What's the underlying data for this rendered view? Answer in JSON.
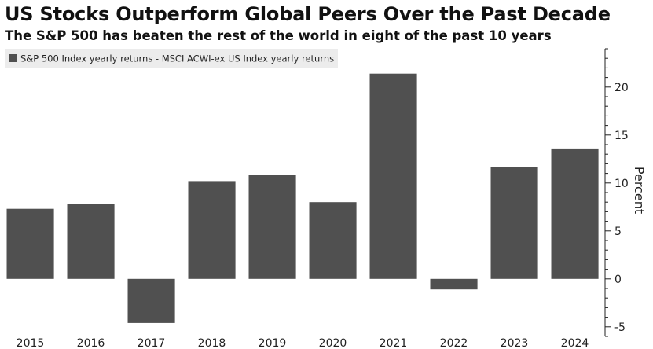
{
  "chart_data": {
    "type": "bar",
    "title": "US Stocks Outperform Global Peers Over the Past Decade",
    "subtitle": "The S&P 500 has beaten the rest of the world in eight of the past 10 years",
    "legend": "S&P 500 Index yearly returns - MSCI ACWI-ex US Index yearly returns",
    "legend_placement": "top-left",
    "ylabel": "Percent",
    "categories": [
      "2015",
      "2016",
      "2017",
      "2018",
      "2019",
      "2020",
      "2021",
      "2022",
      "2023",
      "2024"
    ],
    "values": [
      7.3,
      7.8,
      -4.6,
      10.2,
      10.8,
      8.0,
      21.4,
      -1.1,
      11.7,
      13.6
    ],
    "ylim": [
      -6,
      24
    ],
    "yticks": [
      -5,
      0,
      5,
      10,
      15,
      20
    ],
    "y_axis_side": "right",
    "grid": false,
    "bar_color": "#505050"
  }
}
